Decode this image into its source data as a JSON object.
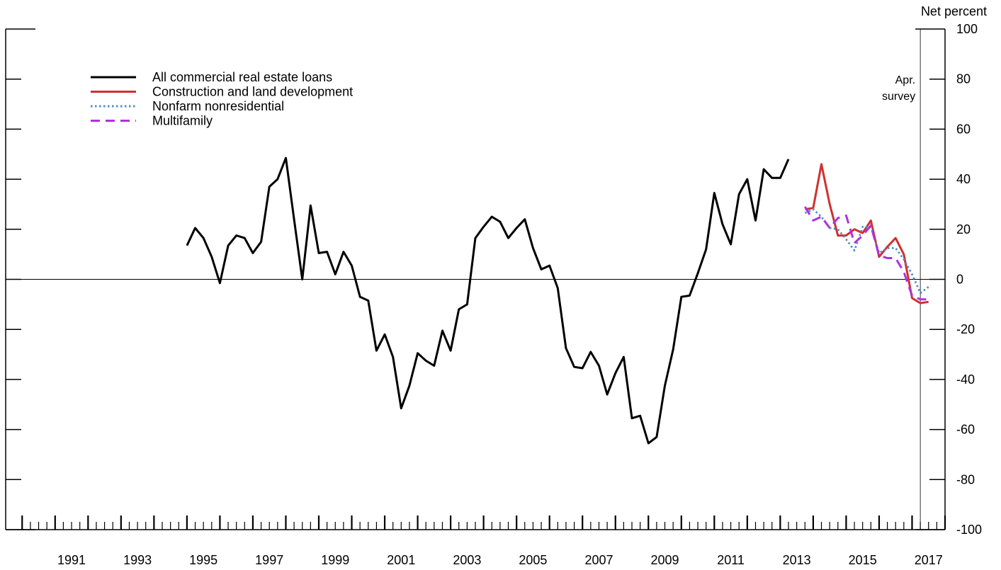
{
  "chart_data": {
    "type": "line",
    "title": "",
    "ylabel": "Net percent",
    "ylim": [
      -100,
      100
    ],
    "y_ticks": [
      100,
      80,
      60,
      40,
      20,
      0,
      -20,
      -40,
      -60,
      -80,
      -100
    ],
    "x_range": [
      1989.5,
      2018.0
    ],
    "x_tick_labels": [
      "1991",
      "1993",
      "1995",
      "1997",
      "1999",
      "2001",
      "2003",
      "2005",
      "2007",
      "2009",
      "2011",
      "2013",
      "2015",
      "2017"
    ],
    "annotation": {
      "line1": "Apr.",
      "line2": "survey",
      "x": 2017.25
    },
    "legend": {
      "placement": "top-left"
    },
    "series": [
      {
        "name": "All commercial real estate loans",
        "color": "#000000",
        "style": "solid",
        "points": [
          [
            1995.0,
            13.5
          ],
          [
            1995.25,
            20.5
          ],
          [
            1995.5,
            16.5
          ],
          [
            1995.75,
            9.0
          ],
          [
            1996.0,
            -1.5
          ],
          [
            1996.25,
            13.5
          ],
          [
            1996.5,
            17.5
          ],
          [
            1996.75,
            16.5
          ],
          [
            1997.0,
            10.5
          ],
          [
            1997.25,
            15.0
          ],
          [
            1997.5,
            37.0
          ],
          [
            1997.75,
            40.0
          ],
          [
            1998.0,
            48.5
          ],
          [
            1998.25,
            24.0
          ],
          [
            1998.5,
            0.0
          ],
          [
            1998.75,
            29.5
          ],
          [
            1999.0,
            10.5
          ],
          [
            1999.25,
            11.0
          ],
          [
            1999.5,
            2.0
          ],
          [
            1999.75,
            11.0
          ],
          [
            2000.0,
            5.5
          ],
          [
            2000.25,
            -7.0
          ],
          [
            2000.5,
            -8.5
          ],
          [
            2000.75,
            -28.5
          ],
          [
            2001.0,
            -22.0
          ],
          [
            2001.25,
            -31.0
          ],
          [
            2001.5,
            -51.5
          ],
          [
            2001.75,
            -42.5
          ],
          [
            2002.0,
            -29.5
          ],
          [
            2002.25,
            -32.5
          ],
          [
            2002.5,
            -34.5
          ],
          [
            2002.75,
            -20.5
          ],
          [
            2003.0,
            -28.5
          ],
          [
            2003.25,
            -12.0
          ],
          [
            2003.5,
            -10.0
          ],
          [
            2003.75,
            16.5
          ],
          [
            2004.0,
            21.0
          ],
          [
            2004.25,
            25.0
          ],
          [
            2004.5,
            23.0
          ],
          [
            2004.75,
            16.5
          ],
          [
            2005.0,
            20.5
          ],
          [
            2005.25,
            24.0
          ],
          [
            2005.5,
            12.5
          ],
          [
            2005.75,
            4.0
          ],
          [
            2006.0,
            5.5
          ],
          [
            2006.25,
            -3.5
          ],
          [
            2006.5,
            -27.5
          ],
          [
            2006.75,
            -35.0
          ],
          [
            2007.0,
            -35.5
          ],
          [
            2007.25,
            -29.0
          ],
          [
            2007.5,
            -34.5
          ],
          [
            2007.75,
            -46.0
          ],
          [
            2008.0,
            -37.5
          ],
          [
            2008.25,
            -31.0
          ],
          [
            2008.5,
            -55.5
          ],
          [
            2008.75,
            -54.5
          ],
          [
            2009.0,
            -65.5
          ],
          [
            2009.25,
            -63.0
          ],
          [
            2009.5,
            -42.5
          ],
          [
            2009.75,
            -28.0
          ],
          [
            2010.0,
            -7.0
          ],
          [
            2010.25,
            -6.5
          ],
          [
            2010.5,
            2.5
          ],
          [
            2010.75,
            12.0
          ],
          [
            2011.0,
            34.5
          ],
          [
            2011.25,
            22.0
          ],
          [
            2011.5,
            14.0
          ],
          [
            2011.75,
            34.0
          ],
          [
            2012.0,
            40.0
          ],
          [
            2012.25,
            23.5
          ],
          [
            2012.5,
            44.0
          ],
          [
            2012.75,
            40.5
          ],
          [
            2013.0,
            40.5
          ],
          [
            2013.25,
            48.0
          ]
        ]
      },
      {
        "name": "Construction and land development",
        "color": "#d03030",
        "style": "solid",
        "points": [
          [
            2013.75,
            28.0
          ],
          [
            2014.0,
            28.5
          ],
          [
            2014.25,
            46.0
          ],
          [
            2014.5,
            30.0
          ],
          [
            2014.75,
            17.5
          ],
          [
            2015.0,
            17.5
          ],
          [
            2015.25,
            20.0
          ],
          [
            2015.5,
            18.5
          ],
          [
            2015.75,
            23.5
          ],
          [
            2016.0,
            9.0
          ],
          [
            2016.25,
            13.0
          ],
          [
            2016.5,
            16.5
          ],
          [
            2016.75,
            10.0
          ],
          [
            2017.0,
            -7.5
          ],
          [
            2017.25,
            -9.5
          ],
          [
            2017.5,
            -9.0
          ]
        ]
      },
      {
        "name": "Nonfarm nonresidential",
        "color": "#4a90c8",
        "style": "dotted",
        "points": [
          [
            2013.75,
            26.5
          ],
          [
            2014.0,
            28.0
          ],
          [
            2014.25,
            25.0
          ],
          [
            2014.5,
            20.5
          ],
          [
            2014.75,
            20.0
          ],
          [
            2015.0,
            16.0
          ],
          [
            2015.25,
            11.5
          ],
          [
            2015.5,
            21.0
          ],
          [
            2015.75,
            21.0
          ],
          [
            2016.0,
            10.5
          ],
          [
            2016.25,
            12.5
          ],
          [
            2016.5,
            12.5
          ],
          [
            2016.75,
            8.0
          ],
          [
            2017.0,
            2.0
          ],
          [
            2017.25,
            -5.5
          ],
          [
            2017.5,
            -3.0
          ]
        ]
      },
      {
        "name": "Multifamily",
        "color": "#b030e0",
        "style": "dashed",
        "points": [
          [
            2013.75,
            29.0
          ],
          [
            2014.0,
            23.5
          ],
          [
            2014.25,
            25.0
          ],
          [
            2014.5,
            20.5
          ],
          [
            2014.75,
            24.5
          ],
          [
            2015.0,
            25.5
          ],
          [
            2015.25,
            14.5
          ],
          [
            2015.5,
            17.5
          ],
          [
            2015.75,
            21.5
          ],
          [
            2016.0,
            9.5
          ],
          [
            2016.25,
            8.5
          ],
          [
            2016.5,
            8.5
          ],
          [
            2016.75,
            3.0
          ],
          [
            2017.0,
            -6.5
          ],
          [
            2017.25,
            -8.0
          ],
          [
            2017.5,
            -8.0
          ]
        ]
      }
    ]
  }
}
